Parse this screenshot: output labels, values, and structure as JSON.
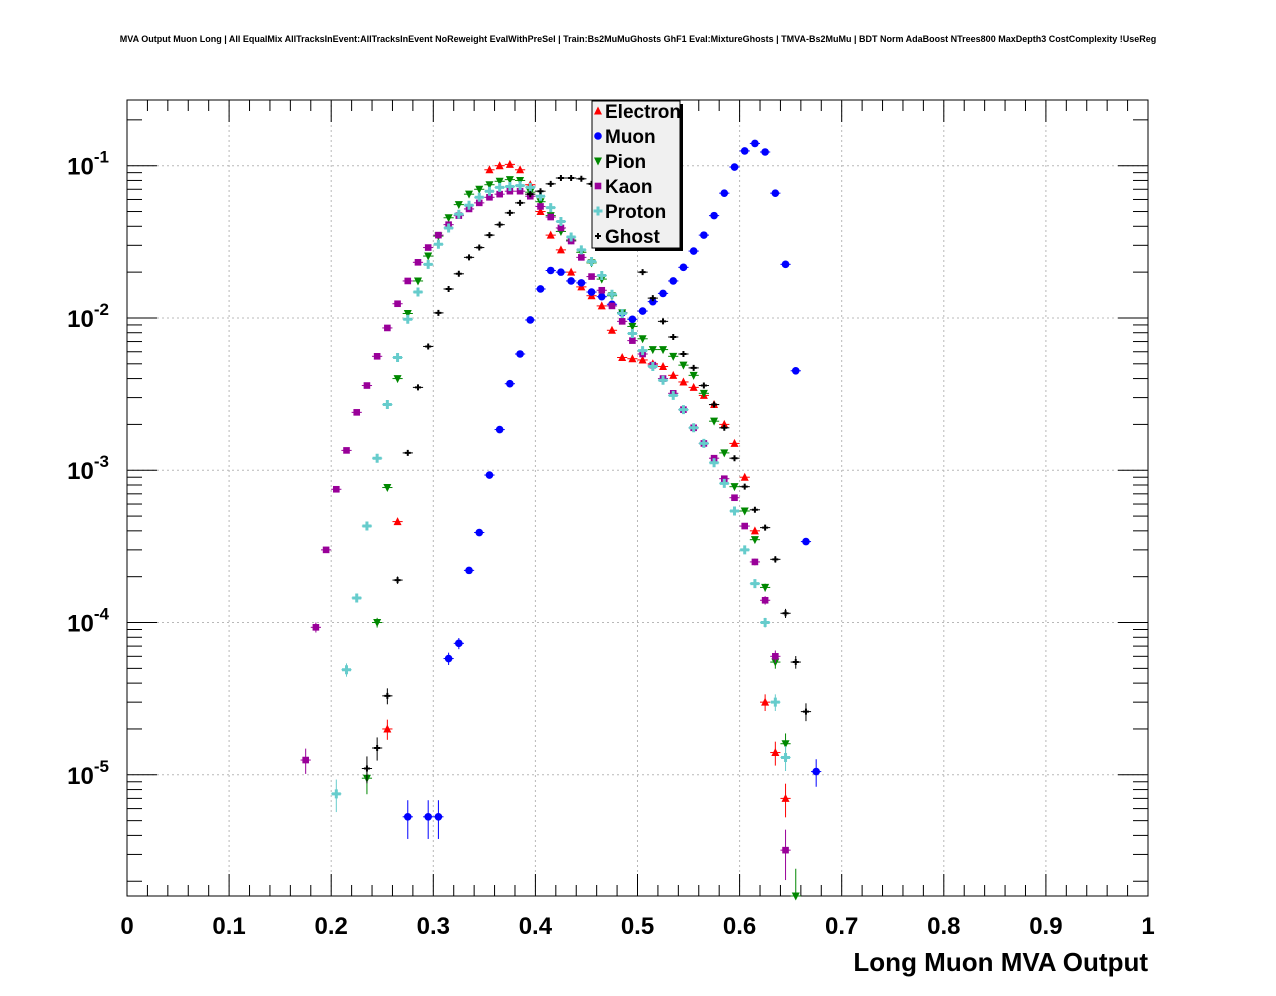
{
  "title": "MVA Output Muon Long | All EqualMix AllTracksInEvent:AllTracksInEvent NoReweight EvalWithPreSel | Train:Bs2MuMuGhosts GhF1 Eval:MixtureGhosts | TMVA-Bs2MuMu | BDT Norm AdaBoost NTrees800 MaxDepth3 CostComplexity !UseReg",
  "chart_data": {
    "type": "scatter",
    "title": "MVA Output Muon Long | All EqualMix AllTracksInEvent:AllTracksInEvent NoReweight EvalWithPreSel | Train:Bs2MuMuGhosts GhF1 Eval:MixtureGhosts | TMVA-Bs2MuMu | BDT Norm AdaBoost NTrees800 MaxDepth3 CostComplexity !UseReg",
    "xlabel": "Long Muon MVA Output",
    "ylabel": "",
    "xlim": [
      0,
      1
    ],
    "ylim": [
      1.6e-06,
      0.27
    ],
    "log_y": true,
    "grid": true,
    "legend_position": "top-center",
    "x_ticks": [
      "0",
      "0.1",
      "0.2",
      "0.3",
      "0.4",
      "0.5",
      "0.6",
      "0.7",
      "0.8",
      "0.9",
      "1"
    ],
    "y_ticks": [
      {
        "base": "10",
        "exp": "-5",
        "value": 1e-05
      },
      {
        "base": "10",
        "exp": "-4",
        "value": 0.0001
      },
      {
        "base": "10",
        "exp": "-3",
        "value": 0.001
      },
      {
        "base": "10",
        "exp": "-2",
        "value": 0.01
      },
      {
        "base": "10",
        "exp": "-1",
        "value": 0.1
      }
    ],
    "series": [
      {
        "name": "Electron",
        "color": "#ff0000",
        "marker": "triangle-up",
        "points": [
          [
            0.265,
            0.00046
          ],
          [
            0.255,
            2e-05
          ],
          [
            0.355,
            0.094
          ],
          [
            0.365,
            0.1
          ],
          [
            0.375,
            0.102
          ],
          [
            0.385,
            0.094
          ],
          [
            0.395,
            0.075
          ],
          [
            0.405,
            0.05
          ],
          [
            0.415,
            0.035
          ],
          [
            0.425,
            0.028
          ],
          [
            0.435,
            0.02
          ],
          [
            0.445,
            0.016
          ],
          [
            0.455,
            0.014
          ],
          [
            0.465,
            0.012
          ],
          [
            0.475,
            0.0083
          ],
          [
            0.485,
            0.0055
          ],
          [
            0.495,
            0.0054
          ],
          [
            0.505,
            0.0053
          ],
          [
            0.515,
            0.005
          ],
          [
            0.525,
            0.0048
          ],
          [
            0.535,
            0.0042
          ],
          [
            0.545,
            0.0038
          ],
          [
            0.555,
            0.0035
          ],
          [
            0.565,
            0.0031
          ],
          [
            0.575,
            0.0027
          ],
          [
            0.585,
            0.002
          ],
          [
            0.595,
            0.0015
          ],
          [
            0.605,
            0.0009
          ],
          [
            0.615,
            0.0004
          ],
          [
            0.625,
            3e-05
          ],
          [
            0.635,
            1.4e-05
          ],
          [
            0.645,
            7e-06
          ]
        ]
      },
      {
        "name": "Muon",
        "color": "#0000ff",
        "marker": "circle",
        "points": [
          [
            0.275,
            5.3e-06
          ],
          [
            0.295,
            5.3e-06
          ],
          [
            0.305,
            5.3e-06
          ],
          [
            0.315,
            5.8e-05
          ],
          [
            0.325,
            7.3e-05
          ],
          [
            0.335,
            0.00022
          ],
          [
            0.345,
            0.00039
          ],
          [
            0.355,
            0.00093
          ],
          [
            0.365,
            0.00185
          ],
          [
            0.375,
            0.0037
          ],
          [
            0.385,
            0.0058
          ],
          [
            0.395,
            0.0097
          ],
          [
            0.405,
            0.0155
          ],
          [
            0.415,
            0.0205
          ],
          [
            0.425,
            0.02
          ],
          [
            0.435,
            0.0175
          ],
          [
            0.445,
            0.017
          ],
          [
            0.455,
            0.0148
          ],
          [
            0.465,
            0.0138
          ],
          [
            0.475,
            0.0123
          ],
          [
            0.485,
            0.0108
          ],
          [
            0.495,
            0.0098
          ],
          [
            0.505,
            0.0111
          ],
          [
            0.515,
            0.0128
          ],
          [
            0.525,
            0.0145
          ],
          [
            0.535,
            0.0175
          ],
          [
            0.545,
            0.0215
          ],
          [
            0.555,
            0.0275
          ],
          [
            0.565,
            0.035
          ],
          [
            0.575,
            0.047
          ],
          [
            0.585,
            0.066
          ],
          [
            0.595,
            0.098
          ],
          [
            0.605,
            0.125
          ],
          [
            0.615,
            0.14
          ],
          [
            0.625,
            0.123
          ],
          [
            0.635,
            0.066
          ],
          [
            0.645,
            0.0225
          ],
          [
            0.655,
            0.0045
          ],
          [
            0.665,
            0.00034
          ],
          [
            0.675,
            1.05e-05
          ]
        ]
      },
      {
        "name": "Pion",
        "color": "#008800",
        "marker": "triangle-down",
        "points": [
          [
            0.235,
            9.5e-06
          ],
          [
            0.245,
            0.0001
          ],
          [
            0.255,
            0.00077
          ],
          [
            0.265,
            0.004
          ],
          [
            0.275,
            0.0107
          ],
          [
            0.285,
            0.0175
          ],
          [
            0.295,
            0.0255
          ],
          [
            0.305,
            0.0345
          ],
          [
            0.315,
            0.0455
          ],
          [
            0.325,
            0.0555
          ],
          [
            0.335,
            0.065
          ],
          [
            0.345,
            0.07
          ],
          [
            0.355,
            0.075
          ],
          [
            0.365,
            0.079
          ],
          [
            0.375,
            0.081
          ],
          [
            0.385,
            0.08
          ],
          [
            0.395,
            0.067
          ],
          [
            0.405,
            0.058
          ],
          [
            0.415,
            0.047
          ],
          [
            0.425,
            0.037
          ],
          [
            0.435,
            0.0325
          ],
          [
            0.445,
            0.027
          ],
          [
            0.455,
            0.023
          ],
          [
            0.465,
            0.018
          ],
          [
            0.475,
            0.014
          ],
          [
            0.485,
            0.0108
          ],
          [
            0.495,
            0.0088
          ],
          [
            0.505,
            0.0073
          ],
          [
            0.515,
            0.0062
          ],
          [
            0.525,
            0.0062
          ],
          [
            0.535,
            0.0056
          ],
          [
            0.545,
            0.0049
          ],
          [
            0.555,
            0.0042
          ],
          [
            0.565,
            0.0032
          ],
          [
            0.575,
            0.0021
          ],
          [
            0.585,
            0.0013
          ],
          [
            0.595,
            0.00078
          ],
          [
            0.605,
            0.00054
          ],
          [
            0.615,
            0.00035
          ],
          [
            0.625,
            0.00017
          ],
          [
            0.635,
            5.5e-05
          ],
          [
            0.645,
            1.6e-05
          ],
          [
            0.655,
            1.6e-06
          ]
        ]
      },
      {
        "name": "Kaon",
        "color": "#990099",
        "marker": "square",
        "points": [
          [
            0.175,
            1.25e-05
          ],
          [
            0.185,
            9.3e-05
          ],
          [
            0.195,
            0.0003
          ],
          [
            0.205,
            0.00075
          ],
          [
            0.215,
            0.00135
          ],
          [
            0.225,
            0.0024
          ],
          [
            0.235,
            0.0036
          ],
          [
            0.245,
            0.0056
          ],
          [
            0.255,
            0.0086
          ],
          [
            0.265,
            0.0124
          ],
          [
            0.275,
            0.0175
          ],
          [
            0.285,
            0.0232
          ],
          [
            0.295,
            0.029
          ],
          [
            0.305,
            0.035
          ],
          [
            0.315,
            0.041
          ],
          [
            0.325,
            0.047
          ],
          [
            0.335,
            0.052
          ],
          [
            0.345,
            0.057
          ],
          [
            0.355,
            0.062
          ],
          [
            0.365,
            0.065
          ],
          [
            0.375,
            0.068
          ],
          [
            0.385,
            0.068
          ],
          [
            0.395,
            0.063
          ],
          [
            0.405,
            0.054
          ],
          [
            0.415,
            0.046
          ],
          [
            0.425,
            0.039
          ],
          [
            0.435,
            0.032
          ],
          [
            0.445,
            0.025
          ],
          [
            0.455,
            0.0187
          ],
          [
            0.465,
            0.0152
          ],
          [
            0.475,
            0.012
          ],
          [
            0.485,
            0.0095
          ],
          [
            0.495,
            0.0071
          ],
          [
            0.505,
            0.0058
          ],
          [
            0.515,
            0.0049
          ],
          [
            0.525,
            0.004
          ],
          [
            0.535,
            0.0032
          ],
          [
            0.545,
            0.0025
          ],
          [
            0.555,
            0.0019
          ],
          [
            0.565,
            0.0015
          ],
          [
            0.575,
            0.0012
          ],
          [
            0.585,
            0.00088
          ],
          [
            0.595,
            0.00066
          ],
          [
            0.605,
            0.00043
          ],
          [
            0.615,
            0.00025
          ],
          [
            0.625,
            0.00014
          ],
          [
            0.635,
            6e-05
          ],
          [
            0.645,
            3.2e-06
          ]
        ]
      },
      {
        "name": "Proton",
        "color": "#66cccc",
        "marker": "cross",
        "points": [
          [
            0.205,
            7.5e-06
          ],
          [
            0.215,
            4.9e-05
          ],
          [
            0.225,
            0.000145
          ],
          [
            0.235,
            0.00043
          ],
          [
            0.245,
            0.0012
          ],
          [
            0.255,
            0.0027
          ],
          [
            0.265,
            0.0055
          ],
          [
            0.275,
            0.0098
          ],
          [
            0.285,
            0.0148
          ],
          [
            0.295,
            0.0225
          ],
          [
            0.305,
            0.0305
          ],
          [
            0.315,
            0.039
          ],
          [
            0.325,
            0.048
          ],
          [
            0.335,
            0.055
          ],
          [
            0.345,
            0.062
          ],
          [
            0.355,
            0.068
          ],
          [
            0.365,
            0.072
          ],
          [
            0.375,
            0.073
          ],
          [
            0.385,
            0.074
          ],
          [
            0.395,
            0.072
          ],
          [
            0.405,
            0.063
          ],
          [
            0.415,
            0.053
          ],
          [
            0.425,
            0.043
          ],
          [
            0.435,
            0.034
          ],
          [
            0.445,
            0.028
          ],
          [
            0.455,
            0.0235
          ],
          [
            0.465,
            0.019
          ],
          [
            0.475,
            0.0143
          ],
          [
            0.485,
            0.0107
          ],
          [
            0.495,
            0.0079
          ],
          [
            0.505,
            0.0061
          ],
          [
            0.515,
            0.0048
          ],
          [
            0.525,
            0.0039
          ],
          [
            0.535,
            0.0031
          ],
          [
            0.545,
            0.0025
          ],
          [
            0.555,
            0.0019
          ],
          [
            0.565,
            0.0015
          ],
          [
            0.575,
            0.00112
          ],
          [
            0.585,
            0.00082
          ],
          [
            0.595,
            0.00054
          ],
          [
            0.605,
            0.0003
          ],
          [
            0.615,
            0.00018
          ],
          [
            0.625,
            0.0001
          ],
          [
            0.635,
            3e-05
          ],
          [
            0.645,
            1.3e-05
          ]
        ]
      },
      {
        "name": "Ghost",
        "color": "#000000",
        "marker": "cross-small",
        "points": [
          [
            0.235,
            1.1e-05
          ],
          [
            0.245,
            1.5e-05
          ],
          [
            0.255,
            3.3e-05
          ],
          [
            0.265,
            0.00019
          ],
          [
            0.275,
            0.0013
          ],
          [
            0.285,
            0.0035
          ],
          [
            0.295,
            0.0065
          ],
          [
            0.305,
            0.0108
          ],
          [
            0.315,
            0.0155
          ],
          [
            0.325,
            0.0195
          ],
          [
            0.335,
            0.025
          ],
          [
            0.345,
            0.029
          ],
          [
            0.355,
            0.035
          ],
          [
            0.365,
            0.041
          ],
          [
            0.375,
            0.049
          ],
          [
            0.385,
            0.057
          ],
          [
            0.395,
            0.065
          ],
          [
            0.405,
            0.068
          ],
          [
            0.415,
            0.076
          ],
          [
            0.425,
            0.083
          ],
          [
            0.435,
            0.083
          ],
          [
            0.445,
            0.082
          ],
          [
            0.455,
            0.076
          ],
          [
            0.465,
            0.065
          ],
          [
            0.475,
            0.054
          ],
          [
            0.485,
            0.04
          ],
          [
            0.495,
            0.031
          ],
          [
            0.505,
            0.02
          ],
          [
            0.515,
            0.0135
          ],
          [
            0.525,
            0.0095
          ],
          [
            0.535,
            0.0075
          ],
          [
            0.545,
            0.0058
          ],
          [
            0.555,
            0.0047
          ],
          [
            0.565,
            0.0036
          ],
          [
            0.575,
            0.0027
          ],
          [
            0.585,
            0.0019
          ],
          [
            0.595,
            0.0012
          ],
          [
            0.605,
            0.00078
          ],
          [
            0.615,
            0.00055
          ],
          [
            0.625,
            0.00042
          ],
          [
            0.635,
            0.00026
          ],
          [
            0.645,
            0.000115
          ],
          [
            0.655,
            5.5e-05
          ],
          [
            0.665,
            2.6e-05
          ]
        ]
      }
    ]
  }
}
